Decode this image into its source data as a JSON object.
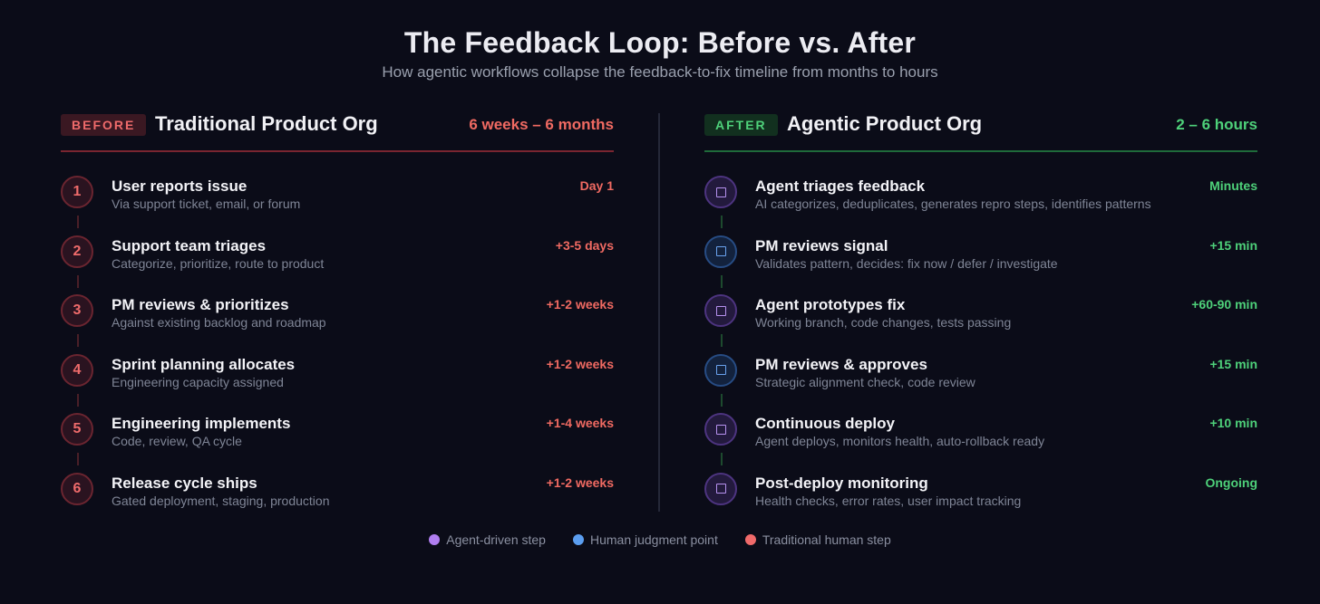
{
  "header": {
    "title": "The Feedback Loop: Before vs. After",
    "subtitle": "How agentic workflows collapse the feedback-to-fix timeline from months to hours"
  },
  "before": {
    "tag": "BEFORE",
    "title": "Traditional Product Org",
    "duration": "6 weeks – 6 months",
    "steps": [
      {
        "num": "1",
        "title": "User reports issue",
        "desc": "Via support ticket, email, or forum",
        "time": "Day 1"
      },
      {
        "num": "2",
        "title": "Support team triages",
        "desc": "Categorize, prioritize, route to product",
        "time": "+3-5 days"
      },
      {
        "num": "3",
        "title": "PM reviews & prioritizes",
        "desc": "Against existing backlog and roadmap",
        "time": "+1-2 weeks"
      },
      {
        "num": "4",
        "title": "Sprint planning allocates",
        "desc": "Engineering capacity assigned",
        "time": "+1-2 weeks"
      },
      {
        "num": "5",
        "title": "Engineering implements",
        "desc": "Code, review, QA cycle",
        "time": "+1-4 weeks"
      },
      {
        "num": "6",
        "title": "Release cycle ships",
        "desc": "Gated deployment, staging, production",
        "time": "+1-2 weeks"
      }
    ]
  },
  "after": {
    "tag": "AFTER",
    "title": "Agentic Product Org",
    "duration": "2 – 6 hours",
    "steps": [
      {
        "kind": "agent",
        "title": "Agent triages feedback",
        "desc": "AI categorizes, deduplicates, generates repro steps, identifies patterns",
        "time": "Minutes"
      },
      {
        "kind": "human",
        "title": "PM reviews signal",
        "desc": "Validates pattern, decides: fix now / defer / investigate",
        "time": "+15 min"
      },
      {
        "kind": "agent",
        "title": "Agent prototypes fix",
        "desc": "Working branch, code changes, tests passing",
        "time": "+60-90 min"
      },
      {
        "kind": "human",
        "title": "PM reviews & approves",
        "desc": "Strategic alignment check, code review",
        "time": "+15 min"
      },
      {
        "kind": "agent",
        "title": "Continuous deploy",
        "desc": "Agent deploys, monitors health, auto-rollback ready",
        "time": "+10 min"
      },
      {
        "kind": "agent",
        "title": "Post-deploy monitoring",
        "desc": "Health checks, error rates, user impact tracking",
        "time": "Ongoing"
      }
    ]
  },
  "legend": [
    {
      "label": "Agent-driven step",
      "color": "#b07ef0"
    },
    {
      "label": "Human judgment point",
      "color": "#5b9ef0"
    },
    {
      "label": "Traditional human step",
      "color": "#f06a6a"
    }
  ]
}
